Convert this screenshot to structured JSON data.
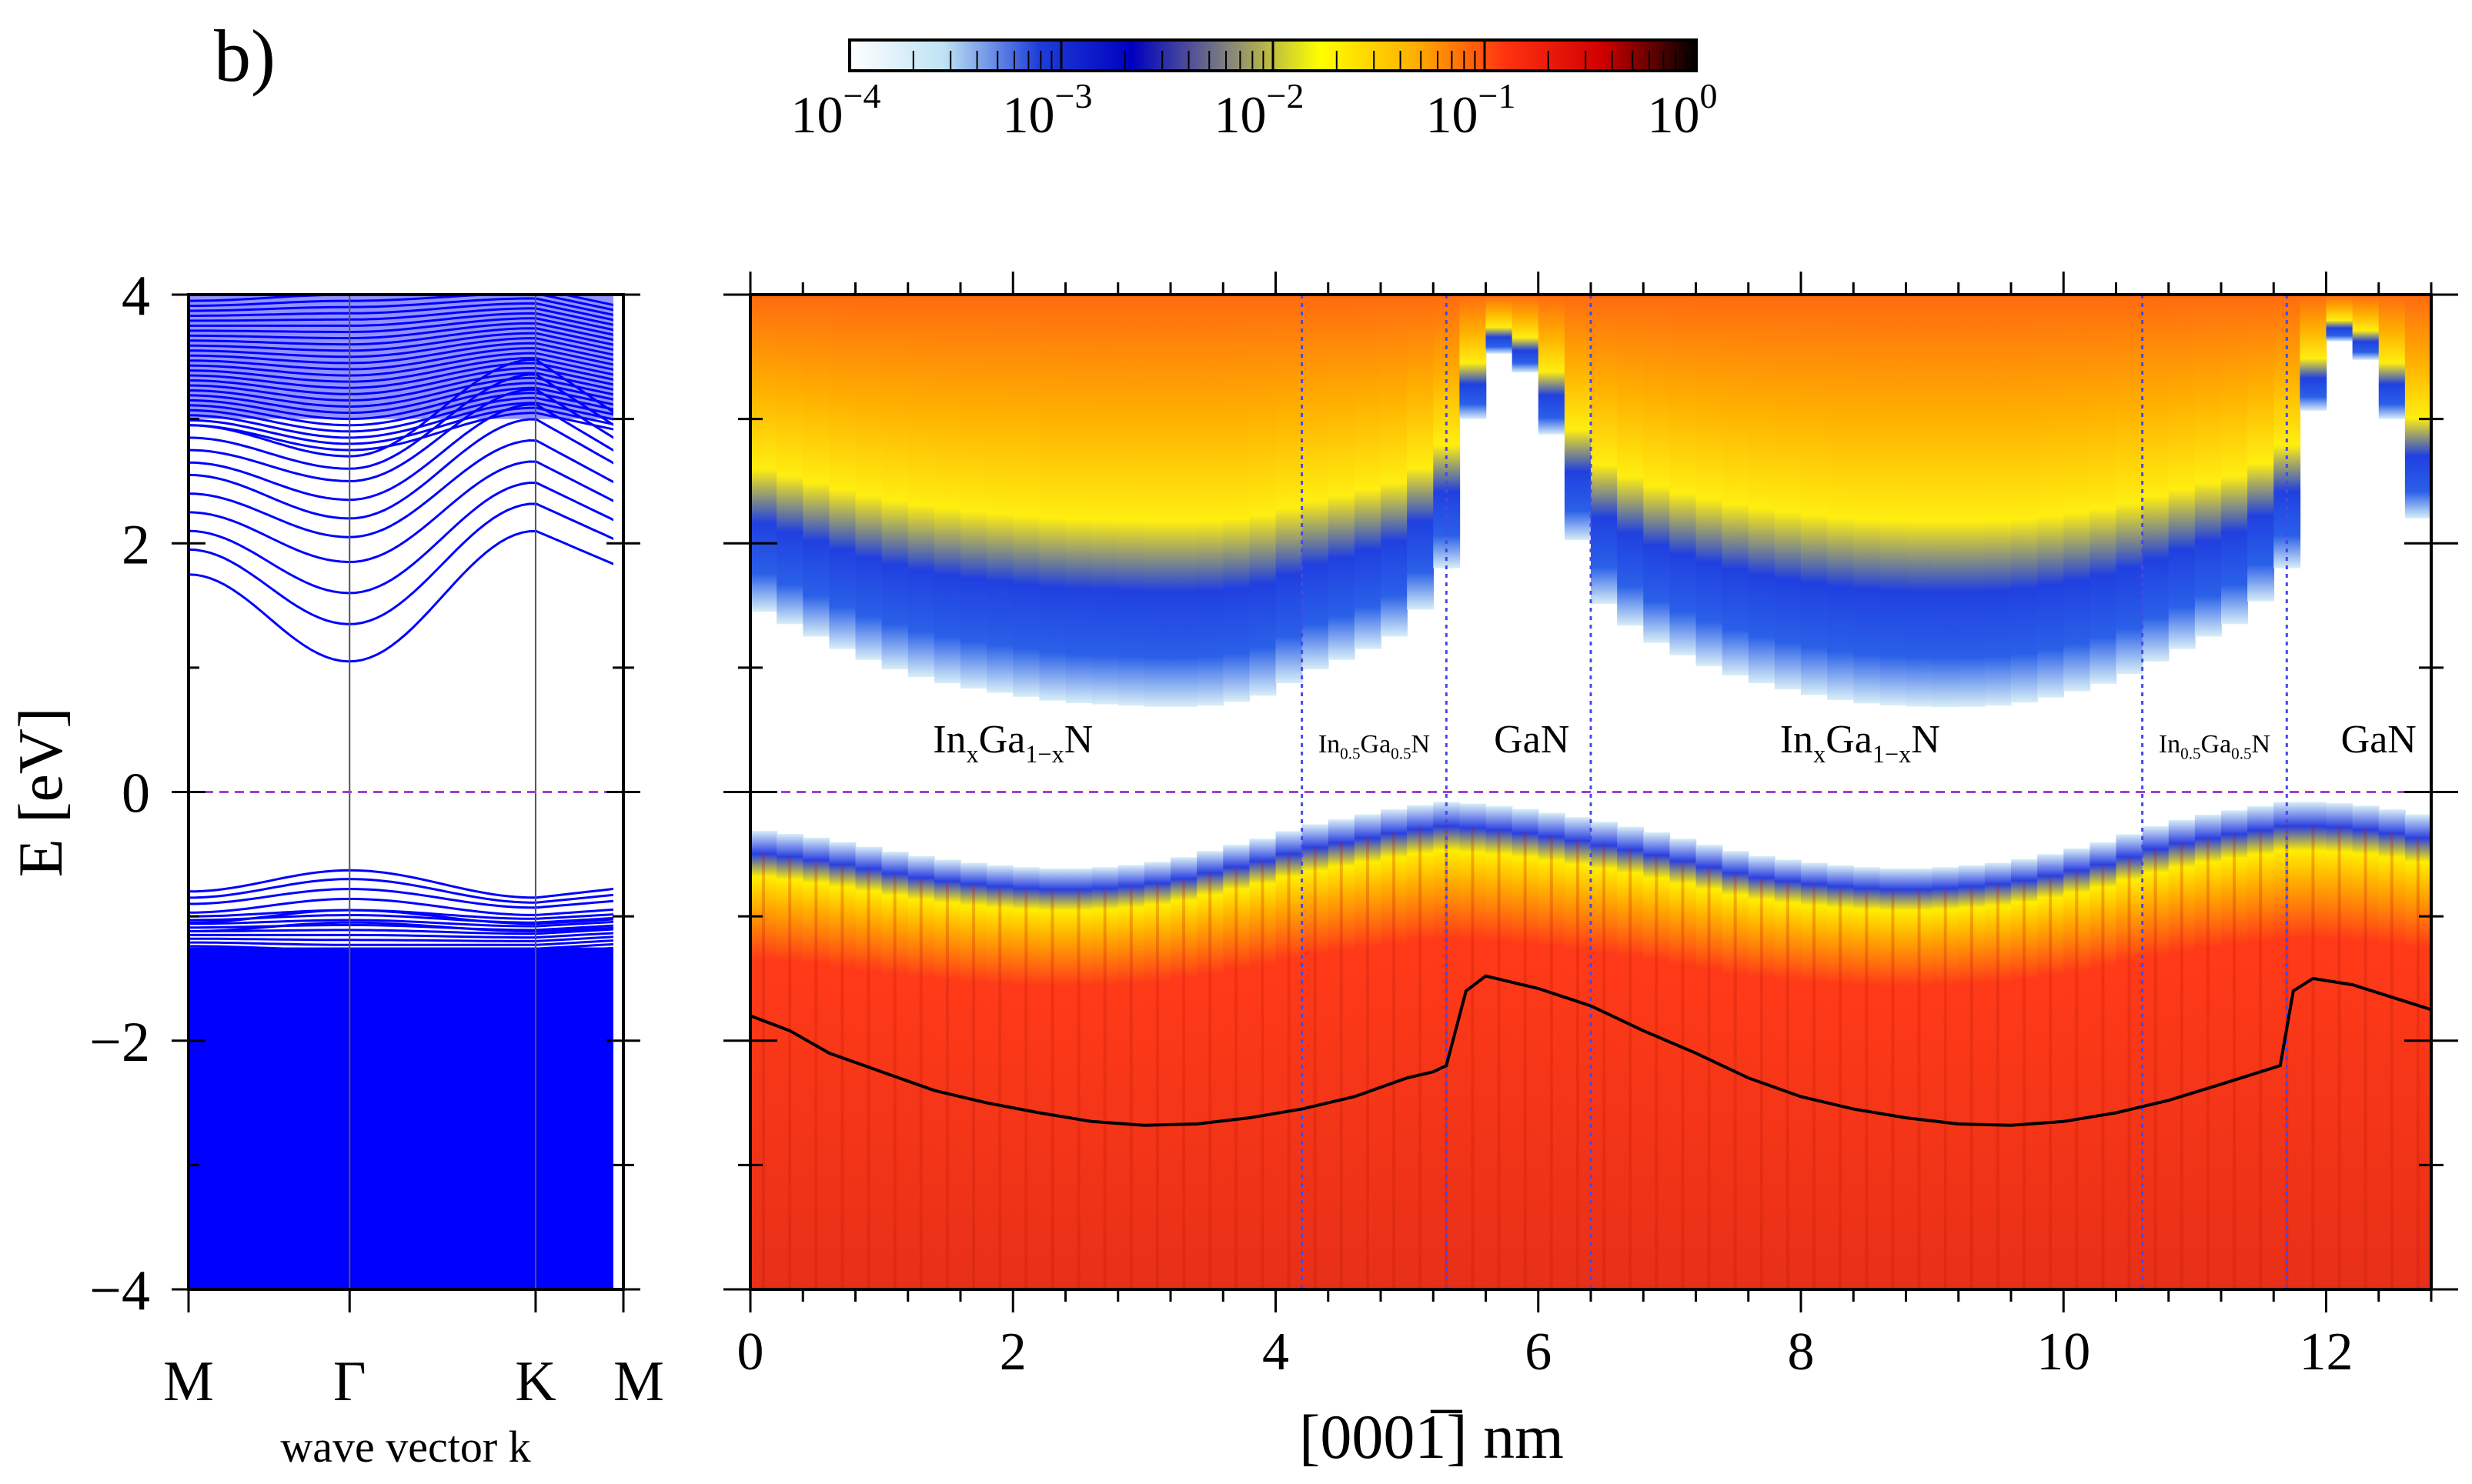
{
  "panel_label": "b)",
  "colorbar": {
    "title": "",
    "tick_labels": [
      {
        "base": "10",
        "exp": "−4"
      },
      {
        "base": "10",
        "exp": "−3"
      },
      {
        "base": "10",
        "exp": "−2"
      },
      {
        "base": "10",
        "exp": "−1"
      },
      {
        "base": "10",
        "exp": "0"
      }
    ],
    "scale": "log",
    "range": [
      0.0001,
      1
    ],
    "colors": [
      "#ffffff",
      "#bfe3f5",
      "#1f3fd8",
      "#0000c0",
      "#808080",
      "#ffff00",
      "#ffb000",
      "#ff3010",
      "#d00000",
      "#000000"
    ]
  },
  "chart_data": [
    {
      "type": "line",
      "name": "band-structure",
      "ylabel": "E [eV]",
      "xlabel": "wave vector k",
      "ylim": [
        -4,
        4
      ],
      "yticks": [
        -4,
        -2,
        0,
        2,
        4
      ],
      "ytick_labels": [
        "−4",
        "−2",
        "0",
        "2",
        "4"
      ],
      "kpoints": [
        "M",
        "Γ",
        "K",
        "M"
      ],
      "kpositions": [
        0,
        1,
        2.155,
        2.7
      ],
      "fermi_level": 0,
      "conduction_band": {
        "min_at_gamma": 1.05,
        "top_of_shown": 4,
        "band_edges_at_M": [
          1.75,
          1.95,
          2.1,
          2.25,
          2.4,
          2.55,
          2.65,
          2.75,
          2.85,
          2.95
        ],
        "band_edges_at_gamma": [
          1.05,
          1.35,
          1.6,
          1.85,
          2.05,
          2.2,
          2.35,
          2.5,
          2.6,
          2.7
        ]
      },
      "valence_band": {
        "max_at_gamma": -0.63,
        "bottom_of_shown": -4,
        "edges_at_M": [
          -0.8,
          -0.85,
          -0.9,
          -0.97,
          -1.05,
          -1.12
        ],
        "edges_at_gamma": [
          -0.63,
          -0.7,
          -0.78,
          -0.86,
          -0.95,
          -1.05
        ]
      },
      "color": "#0000ff"
    },
    {
      "type": "heatmap",
      "name": "local-density-of-states",
      "xlabel": "[0001̅] nm",
      "xlim": [
        0,
        12.8
      ],
      "xticks": [
        0,
        2,
        4,
        6,
        8,
        10,
        12
      ],
      "xtick_labels": [
        "0",
        "2",
        "4",
        "6",
        "8",
        "10",
        "12"
      ],
      "ylim": [
        -4,
        4
      ],
      "colorscale": "log 1e-4 to 1",
      "boundaries_nm": [
        4.2,
        5.3,
        6.4,
        10.6,
        11.7
      ],
      "region_labels": [
        {
          "text_main": "In",
          "sub1": "x",
          "mid": "Ga",
          "sub2": "1−x",
          "end": "N",
          "x": 2.0
        },
        {
          "text_main": "In",
          "sub1": "0.5",
          "mid": "Ga",
          "sub2": "0.5",
          "end": "N",
          "x": 4.75
        },
        {
          "text_main": "GaN",
          "sub1": "",
          "mid": "",
          "sub2": "",
          "end": "",
          "x": 5.95
        },
        {
          "text_main": "In",
          "sub1": "x",
          "mid": "Ga",
          "sub2": "1−x",
          "end": "N",
          "x": 8.45
        },
        {
          "text_main": "In",
          "sub1": "0.5",
          "mid": "Ga",
          "sub2": "0.5",
          "end": "N",
          "x": 11.15
        },
        {
          "text_main": "GaN",
          "sub1": "",
          "mid": "",
          "sub2": "",
          "end": "",
          "x": 12.4
        }
      ],
      "cb_edge_x": [
        0,
        0.4,
        0.8,
        1.2,
        1.6,
        2.0,
        2.4,
        2.8,
        3.2,
        3.6,
        4.0,
        4.2,
        4.6,
        5.0,
        5.3,
        5.6,
        6.0,
        6.4,
        6.8,
        7.2,
        7.6,
        8.0,
        8.4,
        8.8,
        9.2,
        9.6,
        10.0,
        10.4,
        10.6,
        11.0,
        11.4,
        11.7,
        12.0,
        12.4,
        12.8
      ],
      "cb_edge_y": [
        1.5,
        1.3,
        1.1,
        0.95,
        0.85,
        0.78,
        0.72,
        0.7,
        0.68,
        0.7,
        0.8,
        0.95,
        1.1,
        1.3,
        1.8,
        3.6,
        3.3,
        1.6,
        1.25,
        1.05,
        0.9,
        0.8,
        0.72,
        0.69,
        0.68,
        0.7,
        0.78,
        0.9,
        1.0,
        1.2,
        1.4,
        1.8,
        3.7,
        3.4,
        1.8
      ],
      "vb_edge_x": [
        0,
        0.4,
        0.8,
        1.2,
        1.6,
        2.0,
        2.4,
        2.8,
        3.2,
        3.6,
        4.0,
        4.2,
        4.6,
        5.0,
        5.3,
        5.6,
        6.0,
        6.4,
        6.8,
        7.2,
        7.6,
        8.0,
        8.4,
        8.8,
        9.2,
        9.6,
        10.0,
        10.4,
        10.6,
        11.0,
        11.4,
        11.7,
        12.0,
        12.4,
        12.8
      ],
      "vb_edge_y": [
        -0.3,
        -0.35,
        -0.42,
        -0.5,
        -0.56,
        -0.6,
        -0.62,
        -0.6,
        -0.55,
        -0.45,
        -0.35,
        -0.28,
        -0.2,
        -0.12,
        -0.08,
        -0.1,
        -0.15,
        -0.22,
        -0.3,
        -0.4,
        -0.5,
        -0.56,
        -0.6,
        -0.62,
        -0.6,
        -0.56,
        -0.48,
        -0.38,
        -0.3,
        -0.2,
        -0.13,
        -0.08,
        -0.08,
        -0.12,
        -0.2
      ],
      "black_curve_x": [
        0,
        0.3,
        0.6,
        1.0,
        1.4,
        1.8,
        2.2,
        2.6,
        3.0,
        3.4,
        3.8,
        4.2,
        4.6,
        5.0,
        5.2,
        5.3,
        5.45,
        5.6,
        6.0,
        6.4,
        6.8,
        7.2,
        7.6,
        8.0,
        8.4,
        8.8,
        9.2,
        9.6,
        10.0,
        10.4,
        10.8,
        11.2,
        11.5,
        11.65,
        11.75,
        11.9,
        12.2,
        12.5,
        12.8
      ],
      "black_curve_y": [
        -1.8,
        -1.92,
        -2.1,
        -2.25,
        -2.4,
        -2.5,
        -2.58,
        -2.65,
        -2.68,
        -2.67,
        -2.62,
        -2.55,
        -2.45,
        -2.3,
        -2.25,
        -2.2,
        -1.6,
        -1.48,
        -1.58,
        -1.72,
        -1.92,
        -2.1,
        -2.3,
        -2.45,
        -2.55,
        -2.62,
        -2.67,
        -2.68,
        -2.65,
        -2.58,
        -2.48,
        -2.35,
        -2.25,
        -2.2,
        -1.6,
        -1.5,
        -1.55,
        -1.65,
        -1.75
      ]
    }
  ]
}
